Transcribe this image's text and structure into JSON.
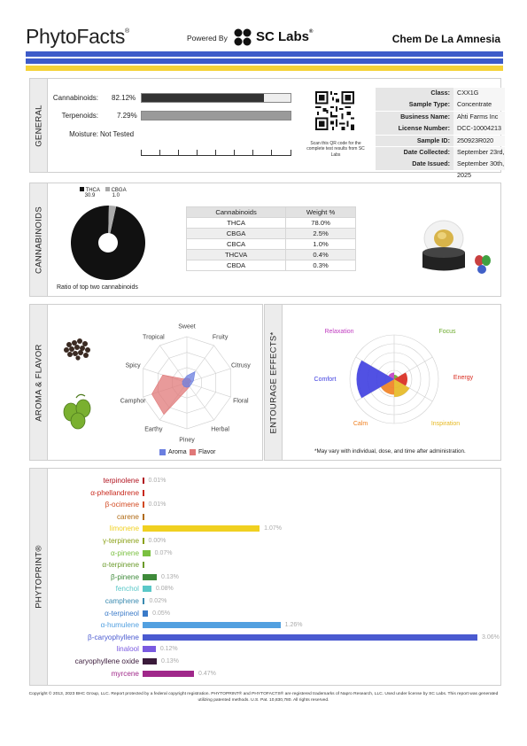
{
  "header": {
    "brand": "PhytoFacts",
    "brand_mark": "®",
    "powered_by": "Powered By",
    "lab_name": "SC Labs",
    "lab_mark": "®",
    "strain": "Chem De La Amnesia"
  },
  "colors": {
    "stripe_blue": "#3d5bc9",
    "stripe_yellow": "#f5d238",
    "bar_dark": "#333333",
    "bar_gray": "#9a9a9a"
  },
  "general": {
    "tab": "GENERAL",
    "rows": [
      {
        "label": "Cannabinoids:",
        "value": "82.12%",
        "fraction": 0.8212
      },
      {
        "label": "Terpenoids:",
        "value": "7.29%",
        "fraction": 0.0729
      },
      {
        "label": "Moisture:",
        "value": "Not Tested"
      }
    ],
    "qr_note": "Scan this QR code for the complete test results from SC Labs",
    "info": [
      {
        "k": "Class:",
        "v": "CXX1G"
      },
      {
        "k": "Sample Type:",
        "v": "Concentrate"
      },
      {
        "k": "Business Name:",
        "v": "Ahti Farms Inc"
      },
      {
        "k": "License Number:",
        "v": "DCC-10004213"
      },
      {
        "k": "Sample ID:",
        "v": "250923R020"
      },
      {
        "k": "Date Collected:",
        "v": "September 23rd, 2025"
      },
      {
        "k": "Date Issued:",
        "v": "September 30th, 2025"
      }
    ]
  },
  "cannabinoids": {
    "tab": "CANNABINOIDS",
    "pie_legend": [
      {
        "name": "THCA",
        "value": "30.9",
        "color": "#111111"
      },
      {
        "name": "CBGA",
        "value": "1.0",
        "color": "#aaaaaa"
      }
    ],
    "ratio_label": "Ratio of top two cannabinoids",
    "table_headers": [
      "Cannabinoids",
      "Weight %"
    ],
    "table_rows": [
      [
        "THCA",
        "78.0%"
      ],
      [
        "CBGA",
        "2.5%"
      ],
      [
        "CBCA",
        "1.0%"
      ],
      [
        "THCVA",
        "0.4%"
      ],
      [
        "CBDA",
        "0.3%"
      ]
    ]
  },
  "aroma": {
    "tab": "AROMA & FLAVOR",
    "axes": [
      "Sweet",
      "Fruity",
      "Citrusy",
      "Floral",
      "Herbal",
      "Piney",
      "Earthy",
      "Camphor",
      "Spicy",
      "Tropical"
    ],
    "aroma_values": [
      0.15,
      0.3,
      0.15,
      0.1,
      0.1,
      0.1,
      0.1,
      0.1,
      0.1,
      0.1
    ],
    "flavor_values": [
      0.1,
      0.1,
      0.1,
      0.05,
      0.1,
      0.15,
      0.85,
      0.8,
      0.55,
      0.1
    ],
    "legend": [
      {
        "name": "Aroma",
        "color": "#6b7fe0"
      },
      {
        "name": "Flavor",
        "color": "#e07878"
      }
    ]
  },
  "entourage": {
    "tab": "ENTOURAGE EFFECTS*",
    "effects": [
      {
        "name": "Relaxation",
        "color": "#c03cc0",
        "value": 0.15
      },
      {
        "name": "Focus",
        "color": "#6aaa2a",
        "value": 0.1
      },
      {
        "name": "Energy",
        "color": "#d8281c",
        "value": 0.3
      },
      {
        "name": "Inspiration",
        "color": "#e6b820",
        "value": 0.4
      },
      {
        "name": "Calm",
        "color": "#f08020",
        "value": 0.35
      },
      {
        "name": "Comfort",
        "color": "#3e3ee0",
        "value": 0.85
      }
    ],
    "note": "*May vary with individual, dose, and time after administration."
  },
  "phytoprint": {
    "tab": "PHYTOPRINT®",
    "max_value": 3.06,
    "terpenes": [
      {
        "name": "terpinolene",
        "pct": "0.01%",
        "value": 0.01,
        "color": "#b0101c"
      },
      {
        "name": "α-phellandrene",
        "pct": "",
        "value": 0.003,
        "color": "#c8281c"
      },
      {
        "name": "β-ocimene",
        "pct": "0.01%",
        "value": 0.01,
        "color": "#d24a22"
      },
      {
        "name": "carene",
        "pct": "",
        "value": 0.003,
        "color": "#b06a14"
      },
      {
        "name": "limonene",
        "pct": "1.07%",
        "value": 1.07,
        "color": "#f0d020"
      },
      {
        "name": "γ-terpinene",
        "pct": "0.00%",
        "value": 0.003,
        "color": "#8aa016"
      },
      {
        "name": "α-pinene",
        "pct": "0.07%",
        "value": 0.07,
        "color": "#7ac040"
      },
      {
        "name": "α-terpinene",
        "pct": "",
        "value": 0.003,
        "color": "#6a9a2a"
      },
      {
        "name": "β-pinene",
        "pct": "0.13%",
        "value": 0.13,
        "color": "#3e8a3a"
      },
      {
        "name": "fenchol",
        "pct": "0.08%",
        "value": 0.08,
        "color": "#5ac8c8"
      },
      {
        "name": "camphene",
        "pct": "0.02%",
        "value": 0.02,
        "color": "#3a8ab0"
      },
      {
        "name": "α-terpineol",
        "pct": "0.05%",
        "value": 0.05,
        "color": "#3a7ac8"
      },
      {
        "name": "α-humulene",
        "pct": "1.26%",
        "value": 1.26,
        "color": "#52a0e0"
      },
      {
        "name": "β-caryophyllene",
        "pct": "3.06%",
        "value": 3.06,
        "color": "#4a5ad0"
      },
      {
        "name": "linalool",
        "pct": "0.12%",
        "value": 0.12,
        "color": "#7a5ae0"
      },
      {
        "name": "caryophyllene oxide",
        "pct": "0.13%",
        "value": 0.13,
        "color": "#3a1a3a"
      },
      {
        "name": "myrcene",
        "pct": "0.47%",
        "value": 0.47,
        "color": "#a0288a"
      }
    ]
  },
  "footer": "Copyright © 2013, 2023 BHC Group, LLC. Report protected by a federal copyright registration. PHYTOPRINT® and PHYTOFACTS® are registered trademarks of Napro Research, LLC. Used under license by SC Labs. This report was generated utilizing patented methods. U.S. Pat. 10,830,780. All rights reserved."
}
